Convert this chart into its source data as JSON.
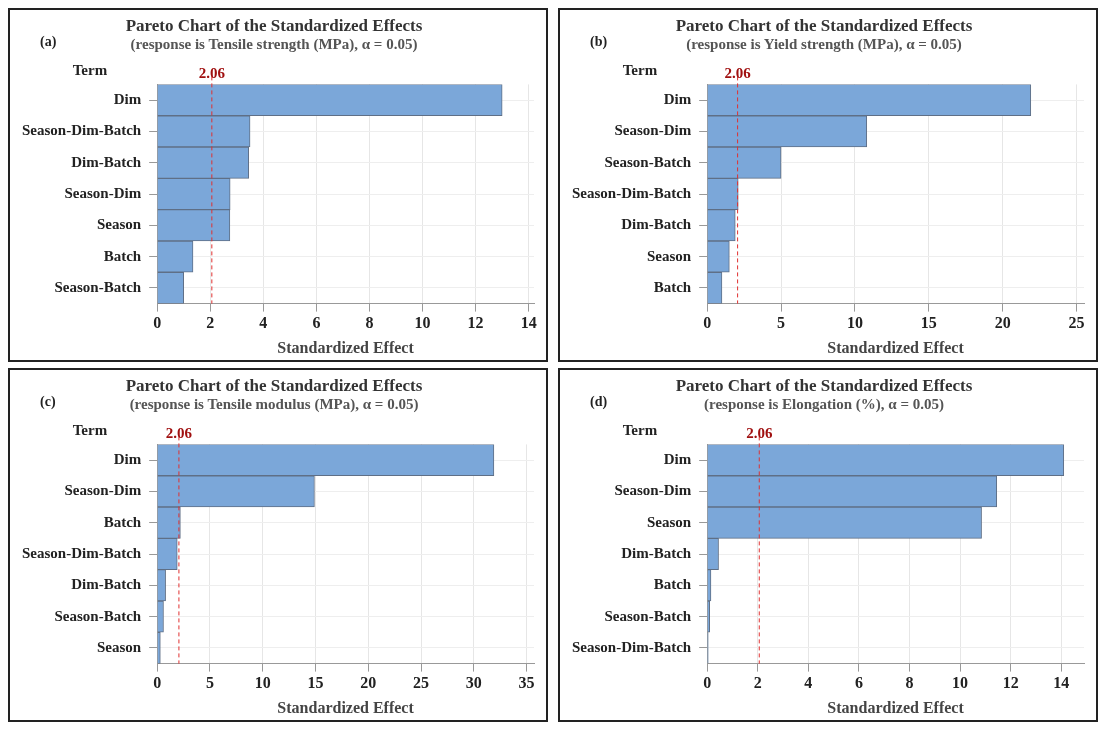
{
  "chart_data": [
    {
      "type": "bar",
      "orientation": "horizontal",
      "title": "Pareto Chart of the Standardized Effects",
      "subtitle": "(response is Tensile strength (MPa), α = 0.05)",
      "annotations": [
        "(a)"
      ],
      "ylabel": "Term",
      "xlabel": "Standardized Effect",
      "categories": [
        "Dim",
        "Season-Dim-Batch",
        "Dim-Batch",
        "Season-Dim",
        "Season",
        "Batch",
        "Season-Batch"
      ],
      "values": [
        13.0,
        3.5,
        3.45,
        2.75,
        2.74,
        1.35,
        1.0
      ],
      "color": "#7ba7d9",
      "xlim": [
        0,
        14.2
      ],
      "xticks": [
        0,
        2,
        4,
        6,
        8,
        10,
        12,
        14
      ],
      "grid": true,
      "ref_lines": [
        {
          "axis": "x",
          "value": 2.06,
          "label": "2.06",
          "color": "#e03030",
          "line_style": "dashed"
        }
      ]
    },
    {
      "type": "bar",
      "orientation": "horizontal",
      "title": "Pareto Chart of the Standardized Effects",
      "subtitle": "(response is Yield strength (MPa), α = 0.05)",
      "annotations": [
        "(b)"
      ],
      "ylabel": "Term",
      "xlabel": "Standardized Effect",
      "categories": [
        "Dim",
        "Season-Dim",
        "Season-Batch",
        "Season-Dim-Batch",
        "Dim-Batch",
        "Season",
        "Batch"
      ],
      "values": [
        21.9,
        10.8,
        5.0,
        2.1,
        1.9,
        1.5,
        1.0
      ],
      "color": "#7ba7d9",
      "xlim": [
        0,
        25.5
      ],
      "xticks": [
        0,
        5,
        10,
        15,
        20,
        25
      ],
      "grid": true,
      "ref_lines": [
        {
          "axis": "x",
          "value": 2.06,
          "label": "2.06",
          "color": "#e03030",
          "line_style": "dashed"
        }
      ]
    },
    {
      "type": "bar",
      "orientation": "horizontal",
      "title": "Pareto Chart of the Standardized Effects",
      "subtitle": "(response is Tensile modulus (MPa), α = 0.05)",
      "annotations": [
        "(c)"
      ],
      "ylabel": "Term",
      "xlabel": "Standardized Effect",
      "categories": [
        "Dim",
        "Season-Dim",
        "Batch",
        "Season-Dim-Batch",
        "Dim-Batch",
        "Season-Batch",
        "Season"
      ],
      "values": [
        31.9,
        14.9,
        2.2,
        1.9,
        0.8,
        0.6,
        0.3
      ],
      "color": "#7ba7d9",
      "xlim": [
        0,
        35.7
      ],
      "xticks": [
        0,
        5,
        10,
        15,
        20,
        25,
        30,
        35
      ],
      "grid": true,
      "ref_lines": [
        {
          "axis": "x",
          "value": 2.06,
          "label": "2.06",
          "color": "#e03030",
          "line_style": "dashed"
        }
      ]
    },
    {
      "type": "bar",
      "orientation": "horizontal",
      "title": "Pareto Chart of the Standardized Effects",
      "subtitle": "(response is Elongation (%), α = 0.05)",
      "annotations": [
        "(d)"
      ],
      "ylabel": "Term",
      "xlabel": "Standardized Effect",
      "categories": [
        "Dim",
        "Season-Dim",
        "Season",
        "Dim-Batch",
        "Batch",
        "Season-Batch",
        "Season-Dim-Batch"
      ],
      "values": [
        14.1,
        11.45,
        10.85,
        0.45,
        0.15,
        0.1,
        0.04
      ],
      "color": "#7ba7d9",
      "xlim": [
        0,
        14.9
      ],
      "xticks": [
        0,
        2,
        4,
        6,
        8,
        10,
        12,
        14
      ],
      "grid": true,
      "ref_lines": [
        {
          "axis": "x",
          "value": 2.06,
          "label": "2.06",
          "color": "#e03030",
          "line_style": "dashed"
        }
      ]
    }
  ]
}
